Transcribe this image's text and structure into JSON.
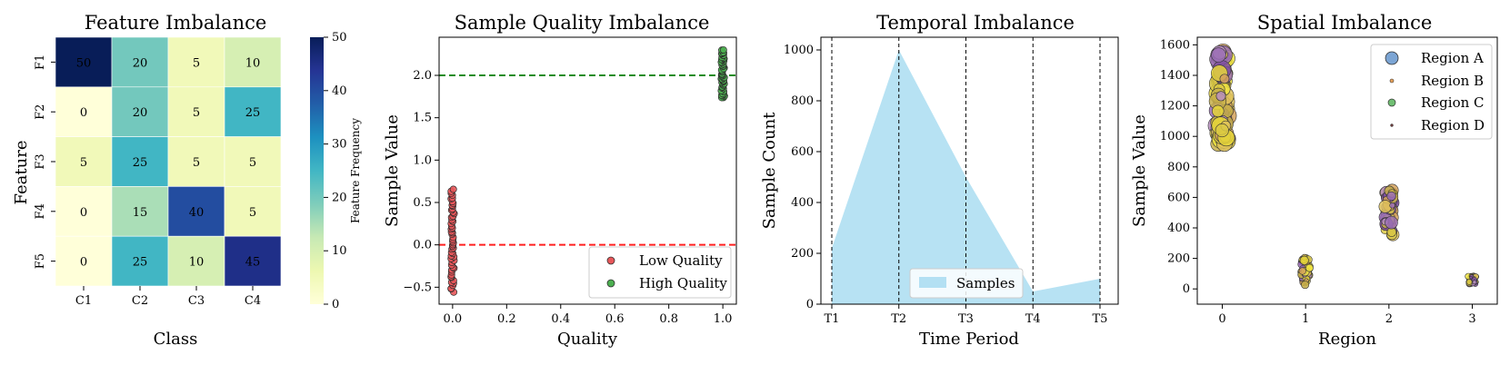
{
  "chart_data": [
    {
      "type": "heatmap",
      "title": "Feature Imbalance",
      "xlabel": "Class",
      "ylabel": "Feature",
      "x_categories": [
        "C1",
        "C2",
        "C3",
        "C4"
      ],
      "y_categories": [
        "F1",
        "F2",
        "F3",
        "F4",
        "F5"
      ],
      "values": [
        [
          50,
          20,
          5,
          10
        ],
        [
          0,
          20,
          5,
          25
        ],
        [
          5,
          25,
          5,
          5
        ],
        [
          0,
          15,
          40,
          5
        ],
        [
          0,
          25,
          10,
          45
        ]
      ],
      "colorbar": {
        "label": "Feature Frequency",
        "range": [
          0,
          50
        ],
        "ticks": [
          0,
          10,
          20,
          30,
          40,
          50
        ],
        "colormap": "YlGnBu"
      }
    },
    {
      "type": "scatter",
      "title": "Sample Quality Imbalance",
      "xlabel": "Quality",
      "ylabel": "Sample Value",
      "xlim": [
        -0.05,
        1.05
      ],
      "ylim": [
        -0.7,
        2.45
      ],
      "xticks": [
        0.0,
        0.2,
        0.4,
        0.6,
        0.8,
        1.0
      ],
      "xtick_labels": [
        "0.0",
        "0.2",
        "0.4",
        "0.6",
        "0.8",
        "1.0"
      ],
      "yticks": [
        -0.5,
        0.0,
        0.5,
        1.0,
        1.5,
        2.0
      ],
      "ytick_labels": [
        "−0.5",
        "0.0",
        "0.5",
        "1.0",
        "1.5",
        "2.0"
      ],
      "series": [
        {
          "name": "Low Quality",
          "x": 0,
          "y_range": [
            -0.55,
            0.65
          ],
          "color": "#e8575a",
          "count": 55
        },
        {
          "name": "High Quality",
          "x": 1,
          "y_range": [
            1.73,
            2.3
          ],
          "color": "#4caf50",
          "count": 55
        }
      ],
      "reference_lines": [
        {
          "y": 0.0,
          "color": "#ff2020",
          "style": "dashed"
        },
        {
          "y": 2.0,
          "color": "#1a8c1a",
          "style": "dashed"
        }
      ],
      "legend": "bottom-right"
    },
    {
      "type": "area",
      "title": "Temporal Imbalance",
      "xlabel": "Time Period",
      "ylabel": "Sample Count",
      "categories": [
        "T1",
        "T2",
        "T3",
        "T4",
        "T5"
      ],
      "values": [
        220,
        1000,
        500,
        50,
        100
      ],
      "ylim": [
        0,
        1050
      ],
      "yticks": [
        0,
        200,
        400,
        600,
        800,
        1000
      ],
      "series_name": "Samples",
      "color": "#87ceeb",
      "vertical_lines": [
        "T1",
        "T2",
        "T3",
        "T4",
        "T5"
      ],
      "legend": "bottom-center"
    },
    {
      "type": "scatter",
      "title": "Spatial Imbalance",
      "xlabel": "Region",
      "ylabel": "Sample Value",
      "xlim": [
        -0.3,
        3.3
      ],
      "ylim": [
        -100,
        1650
      ],
      "xticks": [
        0,
        1,
        2,
        3
      ],
      "yticks": [
        0,
        200,
        400,
        600,
        800,
        1000,
        1200,
        1400,
        1600
      ],
      "series": [
        {
          "name": "Region A",
          "x": 0,
          "y_range": [
            950,
            1560
          ],
          "count": 120
        },
        {
          "name": "Region B",
          "x": 1,
          "y_range": [
            20,
            210
          ],
          "count": 60
        },
        {
          "name": "Region C",
          "x": 2,
          "y_range": [
            350,
            650
          ],
          "count": 70
        },
        {
          "name": "Region D",
          "x": 3,
          "y_range": [
            30,
            90
          ],
          "count": 45
        }
      ],
      "legend_colors": [
        "#5b8fc9",
        "#e8a25a",
        "#4caf50",
        "#6b3a3a"
      ],
      "legend": "top-right"
    }
  ]
}
